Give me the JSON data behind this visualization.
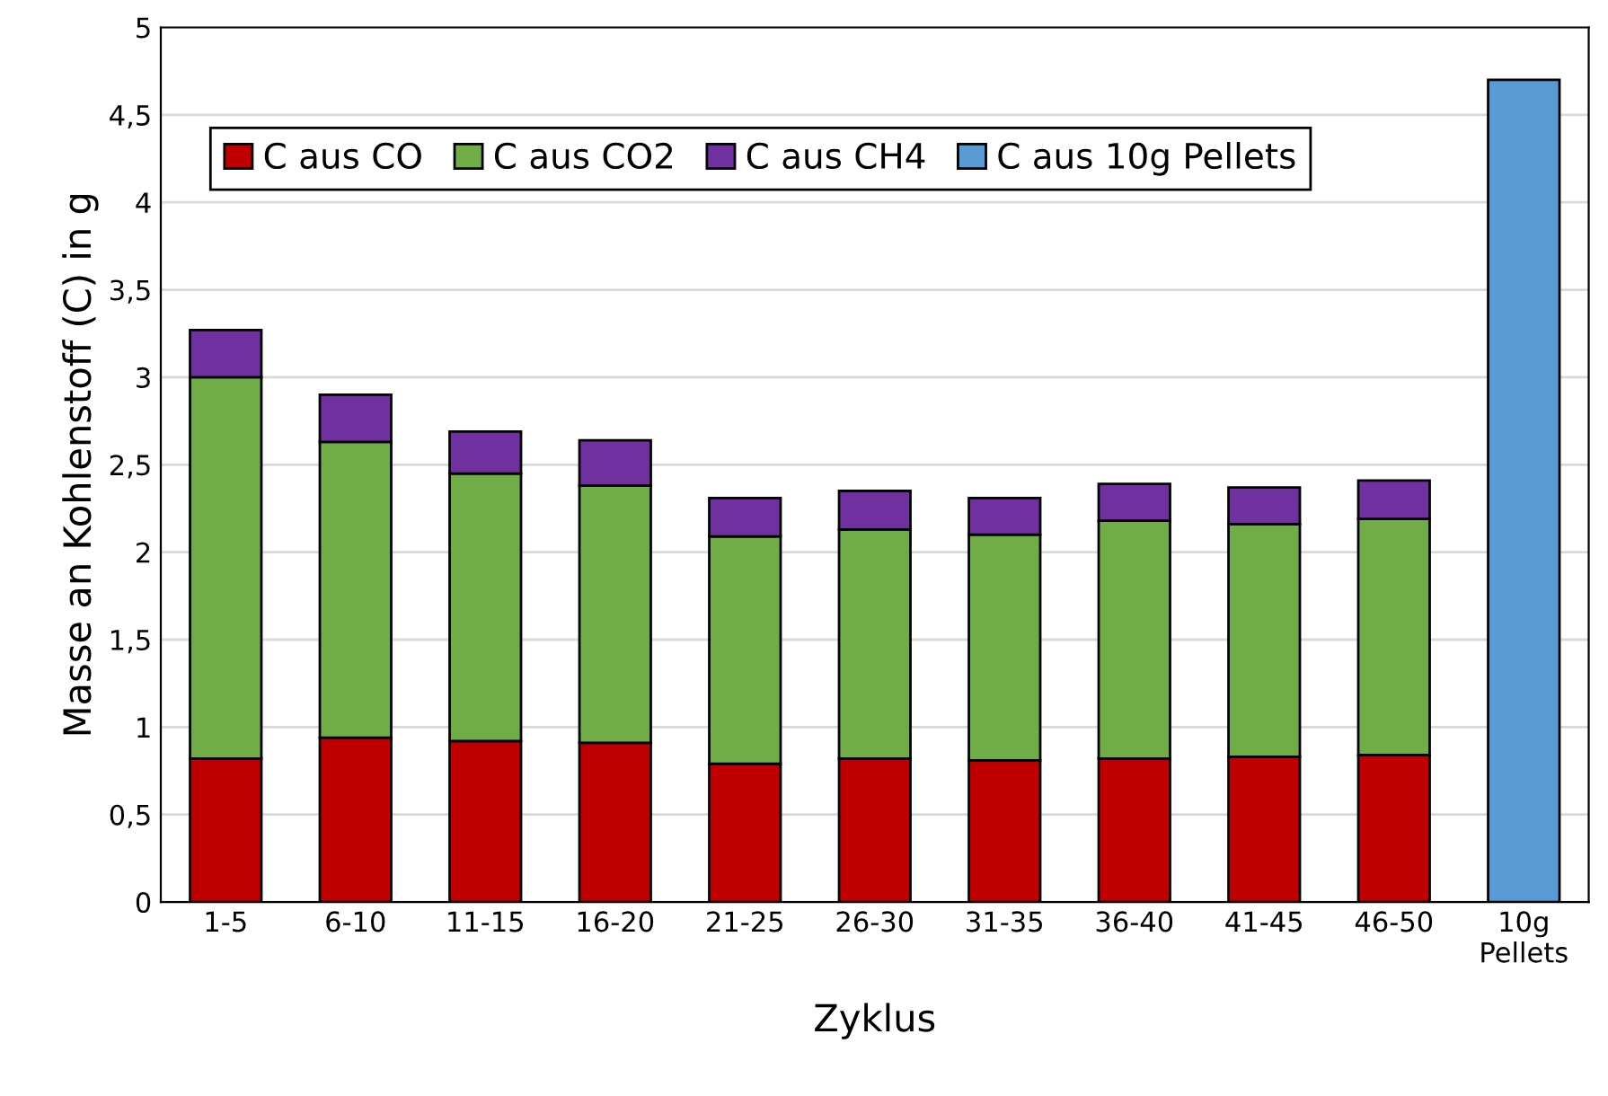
{
  "chart_data": {
    "type": "bar",
    "stacked": true,
    "xlabel": "Zyklus",
    "ylabel": "Masse an Kohlenstoff (C) in g",
    "categories": [
      "1-5",
      "6-10",
      "11-15",
      "16-20",
      "21-25",
      "26-30",
      "31-35",
      "36-40",
      "41-45",
      "46-50",
      "10g\nPellets"
    ],
    "series": [
      {
        "name": "C aus CO",
        "color": "#c00000",
        "values": [
          0.82,
          0.94,
          0.92,
          0.91,
          0.79,
          0.82,
          0.81,
          0.82,
          0.83,
          0.84,
          null
        ]
      },
      {
        "name": "C aus CO2",
        "color": "#70ad47",
        "values": [
          2.18,
          1.69,
          1.53,
          1.47,
          1.3,
          1.31,
          1.29,
          1.36,
          1.33,
          1.35,
          null
        ]
      },
      {
        "name": "C aus CH4",
        "color": "#7030a0",
        "values": [
          0.27,
          0.27,
          0.24,
          0.26,
          0.22,
          0.22,
          0.21,
          0.21,
          0.21,
          0.22,
          null
        ]
      },
      {
        "name": "C aus 10g Pellets",
        "color": "#5b9bd5",
        "values": [
          null,
          null,
          null,
          null,
          null,
          null,
          null,
          null,
          null,
          null,
          4.7
        ]
      }
    ],
    "ylim": [
      0,
      5
    ],
    "yticks": [
      0,
      {
        "value": 0.5,
        "label": "0,5"
      },
      1,
      {
        "value": 1.5,
        "label": "1,5"
      },
      2,
      {
        "value": 2.5,
        "label": "2,5"
      },
      3,
      {
        "value": 3.5,
        "label": "3,5"
      },
      4,
      {
        "value": 4.5,
        "label": "4,5"
      },
      5
    ],
    "grid": "y",
    "legend": "top"
  }
}
